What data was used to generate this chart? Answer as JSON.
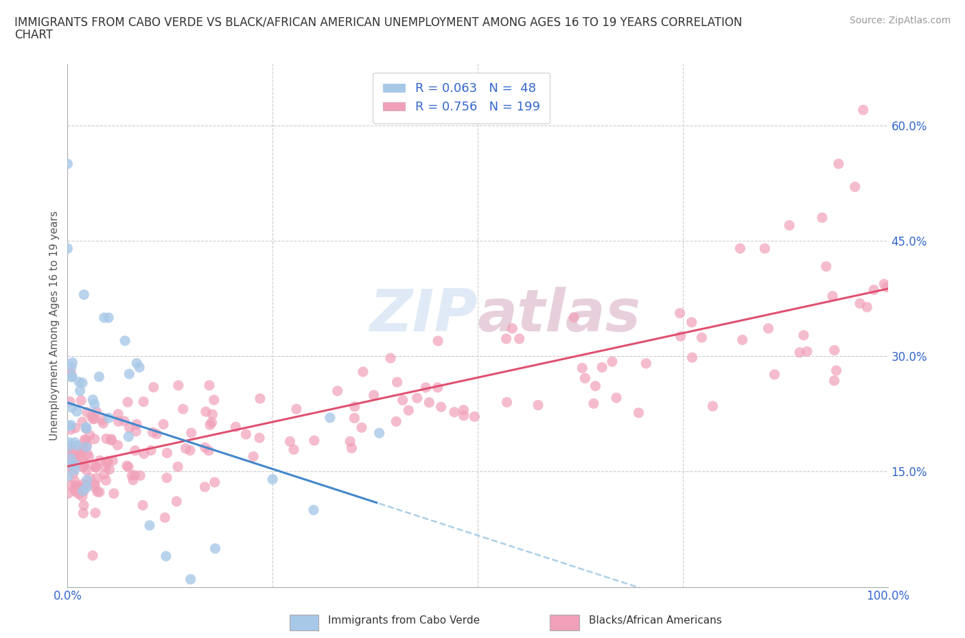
{
  "title_line1": "IMMIGRANTS FROM CABO VERDE VS BLACK/AFRICAN AMERICAN UNEMPLOYMENT AMONG AGES 16 TO 19 YEARS CORRELATION",
  "title_line2": "CHART",
  "source": "Source: ZipAtlas.com",
  "ylabel": "Unemployment Among Ages 16 to 19 years",
  "xlim": [
    0.0,
    1.0
  ],
  "ylim": [
    0.0,
    0.68
  ],
  "legend_R_blue": "0.063",
  "legend_N_blue": "48",
  "legend_R_pink": "0.756",
  "legend_N_pink": "199",
  "blue_color": "#a8c8e8",
  "pink_color": "#f0a0b8",
  "blue_line_color": "#4488cc",
  "pink_line_color": "#e05070",
  "grid_color": "#cccccc",
  "tick_label_color": "#3366cc",
  "ytick_positions": [
    0.15,
    0.3,
    0.45,
    0.6
  ],
  "ytick_labels": [
    "15.0%",
    "30.0%",
    "45.0%",
    "60.0%"
  ],
  "xtick_positions": [
    0.0,
    0.5,
    1.0
  ],
  "xtick_labels": [
    "0.0%",
    "",
    "100.0%"
  ],
  "watermark_color": "#c8daf0",
  "watermark_alpha": 0.55,
  "title_fontsize": 12,
  "source_fontsize": 10,
  "tick_fontsize": 12,
  "ylabel_fontsize": 11,
  "legend_fontsize": 13
}
